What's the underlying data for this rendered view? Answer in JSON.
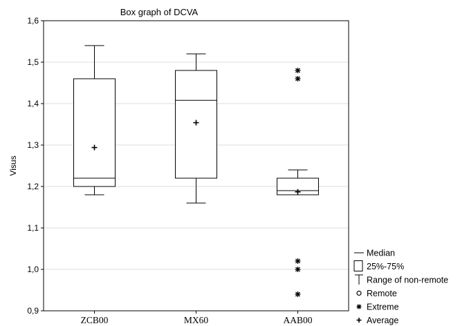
{
  "chart_data": {
    "type": "box",
    "title": "Box graph of DCVA",
    "xlabel": "",
    "ylabel": "Visus",
    "ylim": [
      0.9,
      1.6
    ],
    "yticks": [
      "0,9",
      "1,0",
      "1,1",
      "1,2",
      "1,3",
      "1,4",
      "1,5",
      "1,6"
    ],
    "grid": true,
    "categories": [
      "ZCB00",
      "MX60",
      "AAB00"
    ],
    "boxes": [
      {
        "category": "ZCB00",
        "whisker_low": 1.18,
        "q1": 1.2,
        "median": 1.22,
        "q3": 1.46,
        "whisker_high": 1.54,
        "mean": 1.294,
        "extremes": []
      },
      {
        "category": "MX60",
        "whisker_low": 1.16,
        "q1": 1.22,
        "median": 1.408,
        "q3": 1.48,
        "whisker_high": 1.52,
        "mean": 1.354,
        "extremes": []
      },
      {
        "category": "AAB00",
        "whisker_low": 1.18,
        "q1": 1.18,
        "median": 1.19,
        "q3": 1.22,
        "whisker_high": 1.24,
        "mean": 1.187,
        "extremes": [
          1.48,
          1.46,
          1.02,
          1.0,
          0.94
        ]
      }
    ],
    "legend": {
      "placement": "bottom-right",
      "entries": [
        {
          "symbol": "median-line",
          "label": "Median"
        },
        {
          "symbol": "box",
          "label": "25%-75%"
        },
        {
          "symbol": "whisker",
          "label": "Range of non-remote"
        },
        {
          "symbol": "circle",
          "label": "Remote"
        },
        {
          "symbol": "asterisk",
          "label": "Extreme"
        },
        {
          "symbol": "plus",
          "label": "Average"
        }
      ]
    }
  }
}
